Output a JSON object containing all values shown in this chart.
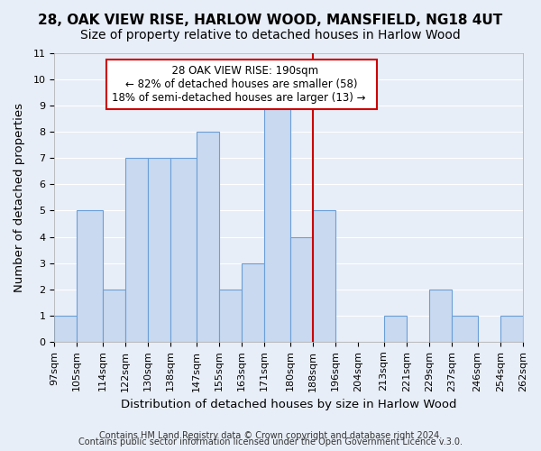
{
  "title": "28, OAK VIEW RISE, HARLOW WOOD, MANSFIELD, NG18 4UT",
  "subtitle": "Size of property relative to detached houses in Harlow Wood",
  "xlabel": "Distribution of detached houses by size in Harlow Wood",
  "ylabel": "Number of detached properties",
  "bin_edges": [
    97,
    105,
    114,
    122,
    130,
    138,
    147,
    155,
    163,
    171,
    180,
    188,
    196,
    204,
    213,
    221,
    229,
    237,
    246,
    254,
    262
  ],
  "bar_heights": [
    1,
    5,
    2,
    7,
    7,
    7,
    8,
    2,
    3,
    9,
    4,
    5,
    0,
    0,
    1,
    0,
    2,
    1,
    0,
    1
  ],
  "bar_color": "#c9d9f0",
  "bar_edgecolor": "#6a9fd8",
  "bar_linewidth": 0.8,
  "redline_x": 188,
  "redline_color": "#cc0000",
  "ylim": [
    0,
    11
  ],
  "yticks": [
    0,
    1,
    2,
    3,
    4,
    5,
    6,
    7,
    8,
    9,
    10,
    11
  ],
  "annotation_title": "28 OAK VIEW RISE: 190sqm",
  "annotation_line1": "← 82% of detached houses are smaller (58)",
  "annotation_line2": "18% of semi-detached houses are larger (13) →",
  "annotation_box_color": "#ffffff",
  "annotation_box_edgecolor": "#cc0000",
  "footer_line1": "Contains HM Land Registry data © Crown copyright and database right 2024.",
  "footer_line2": "Contains public sector information licensed under the Open Government Licence v.3.0.",
  "background_color": "#e8eef7",
  "grid_color": "#ffffff",
  "title_fontsize": 11,
  "subtitle_fontsize": 10,
  "xlabel_fontsize": 9.5,
  "ylabel_fontsize": 9.5,
  "tick_fontsize": 8,
  "annotation_fontsize": 8.5,
  "footer_fontsize": 7
}
